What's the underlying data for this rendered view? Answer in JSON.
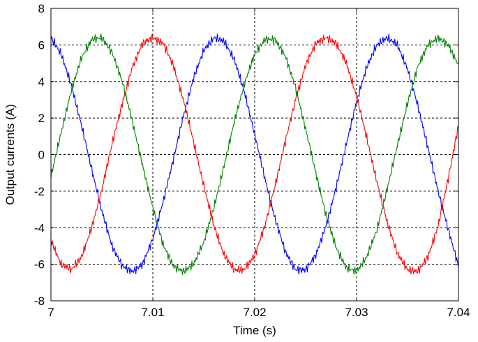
{
  "chart_data": {
    "type": "line",
    "xlabel": "Time (s)",
    "ylabel": "Output currents (A)",
    "xlim": [
      7,
      7.04
    ],
    "ylim": [
      -8,
      8
    ],
    "x_ticks": [
      7,
      7.01,
      7.02,
      7.03,
      7.04
    ],
    "x_tick_labels": [
      "7",
      "7.01",
      "7.02",
      "7.03",
      "7.04"
    ],
    "y_ticks": [
      -8,
      -6,
      -4,
      -2,
      0,
      2,
      4,
      6,
      8
    ],
    "y_tick_labels": [
      "-8",
      "-6",
      "-4",
      "-2",
      "0",
      "2",
      "4",
      "6",
      "8"
    ],
    "grid": true,
    "series": [
      {
        "color": "#0000ff",
        "x": [
          7.0,
          7.001,
          7.002,
          7.003,
          7.004,
          7.005,
          7.006,
          7.007,
          7.008,
          7.009,
          7.01,
          7.011,
          7.012,
          7.013,
          7.014,
          7.015,
          7.016,
          7.017,
          7.018,
          7.019,
          7.02,
          7.021,
          7.022,
          7.023,
          7.024,
          7.025,
          7.026,
          7.027,
          7.028,
          7.029,
          7.03,
          7.031,
          7.032,
          7.033,
          7.034,
          7.035,
          7.036,
          7.037,
          7.038,
          7.039,
          7.04
        ],
        "y": [
          6.4,
          5.5,
          3.8,
          1.6,
          -0.8,
          -3.1,
          -5.0,
          -6.1,
          -6.4,
          -6.0,
          -4.6,
          -2.6,
          -0.3,
          2.1,
          4.2,
          5.7,
          6.4,
          6.2,
          5.2,
          3.4,
          1.1,
          -1.3,
          -3.5,
          -5.3,
          -6.3,
          -6.3,
          -5.5,
          -3.9,
          -1.8,
          0.6,
          2.9,
          4.8,
          6.0,
          6.4,
          6.0,
          4.7,
          2.7,
          0.4,
          -2.0,
          -4.1,
          -6.1
        ]
      },
      {
        "color": "#008000",
        "x": [
          7.0,
          7.001,
          7.002,
          7.003,
          7.004,
          7.005,
          7.006,
          7.007,
          7.008,
          7.009,
          7.01,
          7.011,
          7.012,
          7.013,
          7.014,
          7.015,
          7.016,
          7.017,
          7.018,
          7.019,
          7.02,
          7.021,
          7.022,
          7.023,
          7.024,
          7.025,
          7.026,
          7.027,
          7.028,
          7.029,
          7.03,
          7.031,
          7.032,
          7.033,
          7.034,
          7.035,
          7.036,
          7.037,
          7.038,
          7.039,
          7.04
        ],
        "y": [
          -1.2,
          1.2,
          3.5,
          5.3,
          6.3,
          6.4,
          5.6,
          4.0,
          1.8,
          -0.6,
          -2.9,
          -4.9,
          -6.1,
          -6.4,
          -6.0,
          -4.8,
          -2.9,
          -0.6,
          1.8,
          3.9,
          5.5,
          6.3,
          6.3,
          5.4,
          3.7,
          1.4,
          -1.0,
          -3.3,
          -5.1,
          -6.2,
          -6.4,
          -5.6,
          -4.1,
          -1.9,
          0.5,
          2.8,
          4.8,
          6.0,
          6.4,
          6.0,
          4.9
        ]
      },
      {
        "color": "#ff0000",
        "x": [
          7.0,
          7.001,
          7.002,
          7.003,
          7.004,
          7.005,
          7.006,
          7.007,
          7.008,
          7.009,
          7.01,
          7.011,
          7.012,
          7.013,
          7.014,
          7.015,
          7.016,
          7.017,
          7.018,
          7.019,
          7.02,
          7.021,
          7.022,
          7.023,
          7.024,
          7.025,
          7.026,
          7.027,
          7.028,
          7.029,
          7.03,
          7.031,
          7.032,
          7.033,
          7.034,
          7.035,
          7.036,
          7.037,
          7.038,
          7.039,
          7.04
        ],
        "y": [
          -4.7,
          -6.0,
          -6.3,
          -5.6,
          -4.0,
          -1.9,
          0.6,
          2.8,
          4.8,
          6.1,
          6.4,
          6.1,
          4.9,
          3.0,
          0.7,
          -1.7,
          -3.9,
          -5.5,
          -6.3,
          -6.3,
          -5.5,
          -3.9,
          -1.7,
          0.7,
          3.0,
          4.9,
          6.1,
          6.4,
          6.1,
          5.0,
          3.2,
          0.9,
          -1.5,
          -3.7,
          -5.4,
          -6.3,
          -6.4,
          -5.6,
          -3.9,
          -1.3,
          1.6
        ]
      }
    ]
  }
}
